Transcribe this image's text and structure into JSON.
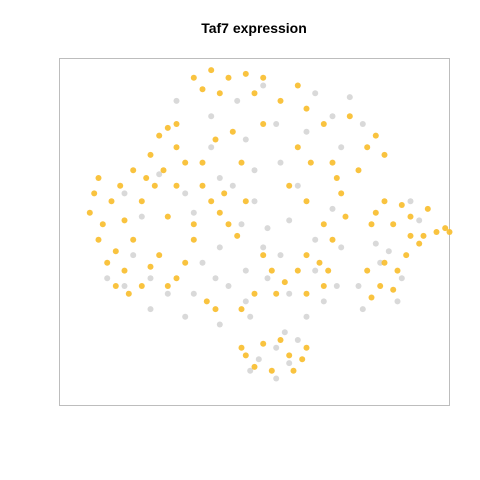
{
  "chart_data": {
    "type": "scatter",
    "title": "Taf7 expression",
    "xlabel": "",
    "ylabel": "",
    "axes_visible": false,
    "grid": false,
    "legend": "none",
    "colors": {
      "expressed": "#f9be2f",
      "expressed_dark": "#f0a91a",
      "not_expressed": "#d6d6d6",
      "frame": "#bdbdbd"
    },
    "xlim": [
      -45,
      45
    ],
    "ylim": [
      -45,
      45
    ],
    "series": [
      {
        "color": "#d6d6d6",
        "points": [
          [
            -24,
            -12
          ],
          [
            -8,
            -4
          ],
          [
            2,
            -4
          ],
          [
            -28,
            -6
          ],
          [
            -14,
            5
          ],
          [
            -5,
            12
          ],
          [
            3,
            1
          ],
          [
            10,
            12
          ],
          [
            14,
            -2
          ],
          [
            18,
            6
          ],
          [
            -22,
            15
          ],
          [
            -10,
            22
          ],
          [
            -2,
            24
          ],
          [
            5,
            28
          ],
          [
            12,
            26
          ],
          [
            18,
            30
          ],
          [
            22,
            35
          ],
          [
            25,
            28
          ],
          [
            -18,
            34
          ],
          [
            -12,
            -8
          ],
          [
            -6,
            -14
          ],
          [
            3,
            -12
          ],
          [
            8,
            -16
          ],
          [
            14,
            -10
          ],
          [
            -16,
            -22
          ],
          [
            -8,
            -24
          ],
          [
            -1,
            -22
          ],
          [
            -20,
            -16
          ],
          [
            -26,
            4
          ],
          [
            -30,
            10
          ],
          [
            7,
            -26
          ],
          [
            12,
            -22
          ],
          [
            16,
            -18
          ],
          [
            19,
            -14
          ],
          [
            20,
            -4
          ],
          [
            20,
            22
          ],
          [
            14,
            36
          ],
          [
            2,
            38
          ],
          [
            -4,
            34
          ],
          [
            -10,
            30
          ],
          [
            6,
            -6
          ],
          [
            -2,
            -10
          ],
          [
            -9,
            -12
          ],
          [
            -14,
            -16
          ],
          [
            -3,
            2
          ],
          [
            8,
            3
          ],
          [
            0,
            16
          ],
          [
            6,
            18
          ],
          [
            -8,
            14
          ],
          [
            -16,
            10
          ],
          [
            1,
            -33
          ],
          [
            5,
            -38
          ],
          [
            8,
            -34
          ],
          [
            -1,
            -36
          ],
          [
            5,
            -30
          ],
          [
            10,
            -28
          ],
          [
            31,
            -5
          ],
          [
            34,
            -12
          ],
          [
            33,
            -18
          ],
          [
            29,
            -8
          ],
          [
            24,
            -14
          ],
          [
            25,
            -20
          ],
          [
            28,
            -3
          ],
          [
            38,
            3
          ],
          [
            36,
            8
          ],
          [
            -34,
            -12
          ],
          [
            -30,
            -14
          ],
          [
            -24,
            -20
          ],
          [
            0,
            8
          ],
          [
            -2,
            -18
          ]
        ]
      },
      {
        "color": "#f9be2f",
        "points": [
          [
            -35,
            2
          ],
          [
            -38,
            5
          ],
          [
            -36,
            -2
          ],
          [
            -33,
            8
          ],
          [
            -32,
            -5
          ],
          [
            -30,
            3
          ],
          [
            -37,
            10
          ],
          [
            -34,
            -8
          ],
          [
            -31,
            12
          ],
          [
            -36,
            14
          ],
          [
            -28,
            -2
          ],
          [
            -26,
            8
          ],
          [
            -24,
            20
          ],
          [
            -22,
            25
          ],
          [
            -20,
            27
          ],
          [
            -18,
            22
          ],
          [
            -16,
            18
          ],
          [
            -21,
            16
          ],
          [
            -25,
            14
          ],
          [
            -23,
            12
          ],
          [
            -18,
            28
          ],
          [
            -12,
            18
          ],
          [
            -12,
            12
          ],
          [
            -10,
            8
          ],
          [
            -8,
            5
          ],
          [
            -6,
            2
          ],
          [
            -4,
            -1
          ],
          [
            -7,
            10
          ],
          [
            -2,
            8
          ],
          [
            -3,
            18
          ],
          [
            -14,
            40
          ],
          [
            -10,
            42
          ],
          [
            -6,
            40
          ],
          [
            -8,
            36
          ],
          [
            -12,
            37
          ],
          [
            -2,
            41
          ],
          [
            2,
            40
          ],
          [
            0,
            36
          ],
          [
            6,
            34
          ],
          [
            10,
            38
          ],
          [
            12,
            32
          ],
          [
            16,
            28
          ],
          [
            22,
            30
          ],
          [
            28,
            25
          ],
          [
            30,
            20
          ],
          [
            26,
            22
          ],
          [
            24,
            16
          ],
          [
            10,
            22
          ],
          [
            13,
            18
          ],
          [
            18,
            18
          ],
          [
            8,
            12
          ],
          [
            12,
            8
          ],
          [
            16,
            2
          ],
          [
            18,
            -2
          ],
          [
            12,
            -6
          ],
          [
            15,
            -8
          ],
          [
            10,
            -10
          ],
          [
            7,
            -13
          ],
          [
            4,
            -10
          ],
          [
            2,
            -6
          ],
          [
            5,
            -16
          ],
          [
            12,
            -16
          ],
          [
            16,
            -14
          ],
          [
            17,
            -10
          ],
          [
            -14,
            -2
          ],
          [
            -16,
            -8
          ],
          [
            -18,
            -12
          ],
          [
            -20,
            -14
          ],
          [
            -26,
            -14
          ],
          [
            -30,
            -10
          ],
          [
            -22,
            -6
          ],
          [
            -11,
            -18
          ],
          [
            -9,
            -20
          ],
          [
            -3,
            -20
          ],
          [
            0,
            -16
          ],
          [
            -20,
            4
          ],
          [
            -14,
            2
          ],
          [
            -28,
            16
          ],
          [
            -18,
            12
          ],
          [
            -24,
            -9
          ],
          [
            -2,
            -32
          ],
          [
            0,
            -35
          ],
          [
            4,
            -36
          ],
          [
            8,
            -32
          ],
          [
            9,
            -36
          ],
          [
            12,
            -30
          ],
          [
            -3,
            -30
          ],
          [
            6,
            -28
          ],
          [
            2,
            -29
          ],
          [
            11,
            -33
          ],
          [
            30,
            -8
          ],
          [
            33,
            -10
          ],
          [
            32,
            -15
          ],
          [
            29,
            -14
          ],
          [
            35,
            -6
          ],
          [
            26,
            -10
          ],
          [
            27,
            -17
          ],
          [
            36,
            -1
          ],
          [
            38,
            -3
          ],
          [
            28,
            5
          ],
          [
            30,
            8
          ],
          [
            32,
            2
          ],
          [
            36,
            4
          ],
          [
            40,
            6
          ],
          [
            42,
            0
          ],
          [
            34,
            7
          ],
          [
            39,
            -1
          ],
          [
            27,
            2
          ],
          [
            45,
            0
          ],
          [
            44,
            1
          ],
          [
            20,
            10
          ],
          [
            21,
            4
          ],
          [
            19,
            14
          ],
          [
            -5,
            26
          ],
          [
            -9,
            24
          ],
          [
            2,
            28
          ],
          [
            -32,
            -14
          ],
          [
            -29,
            -16
          ]
        ]
      }
    ]
  }
}
